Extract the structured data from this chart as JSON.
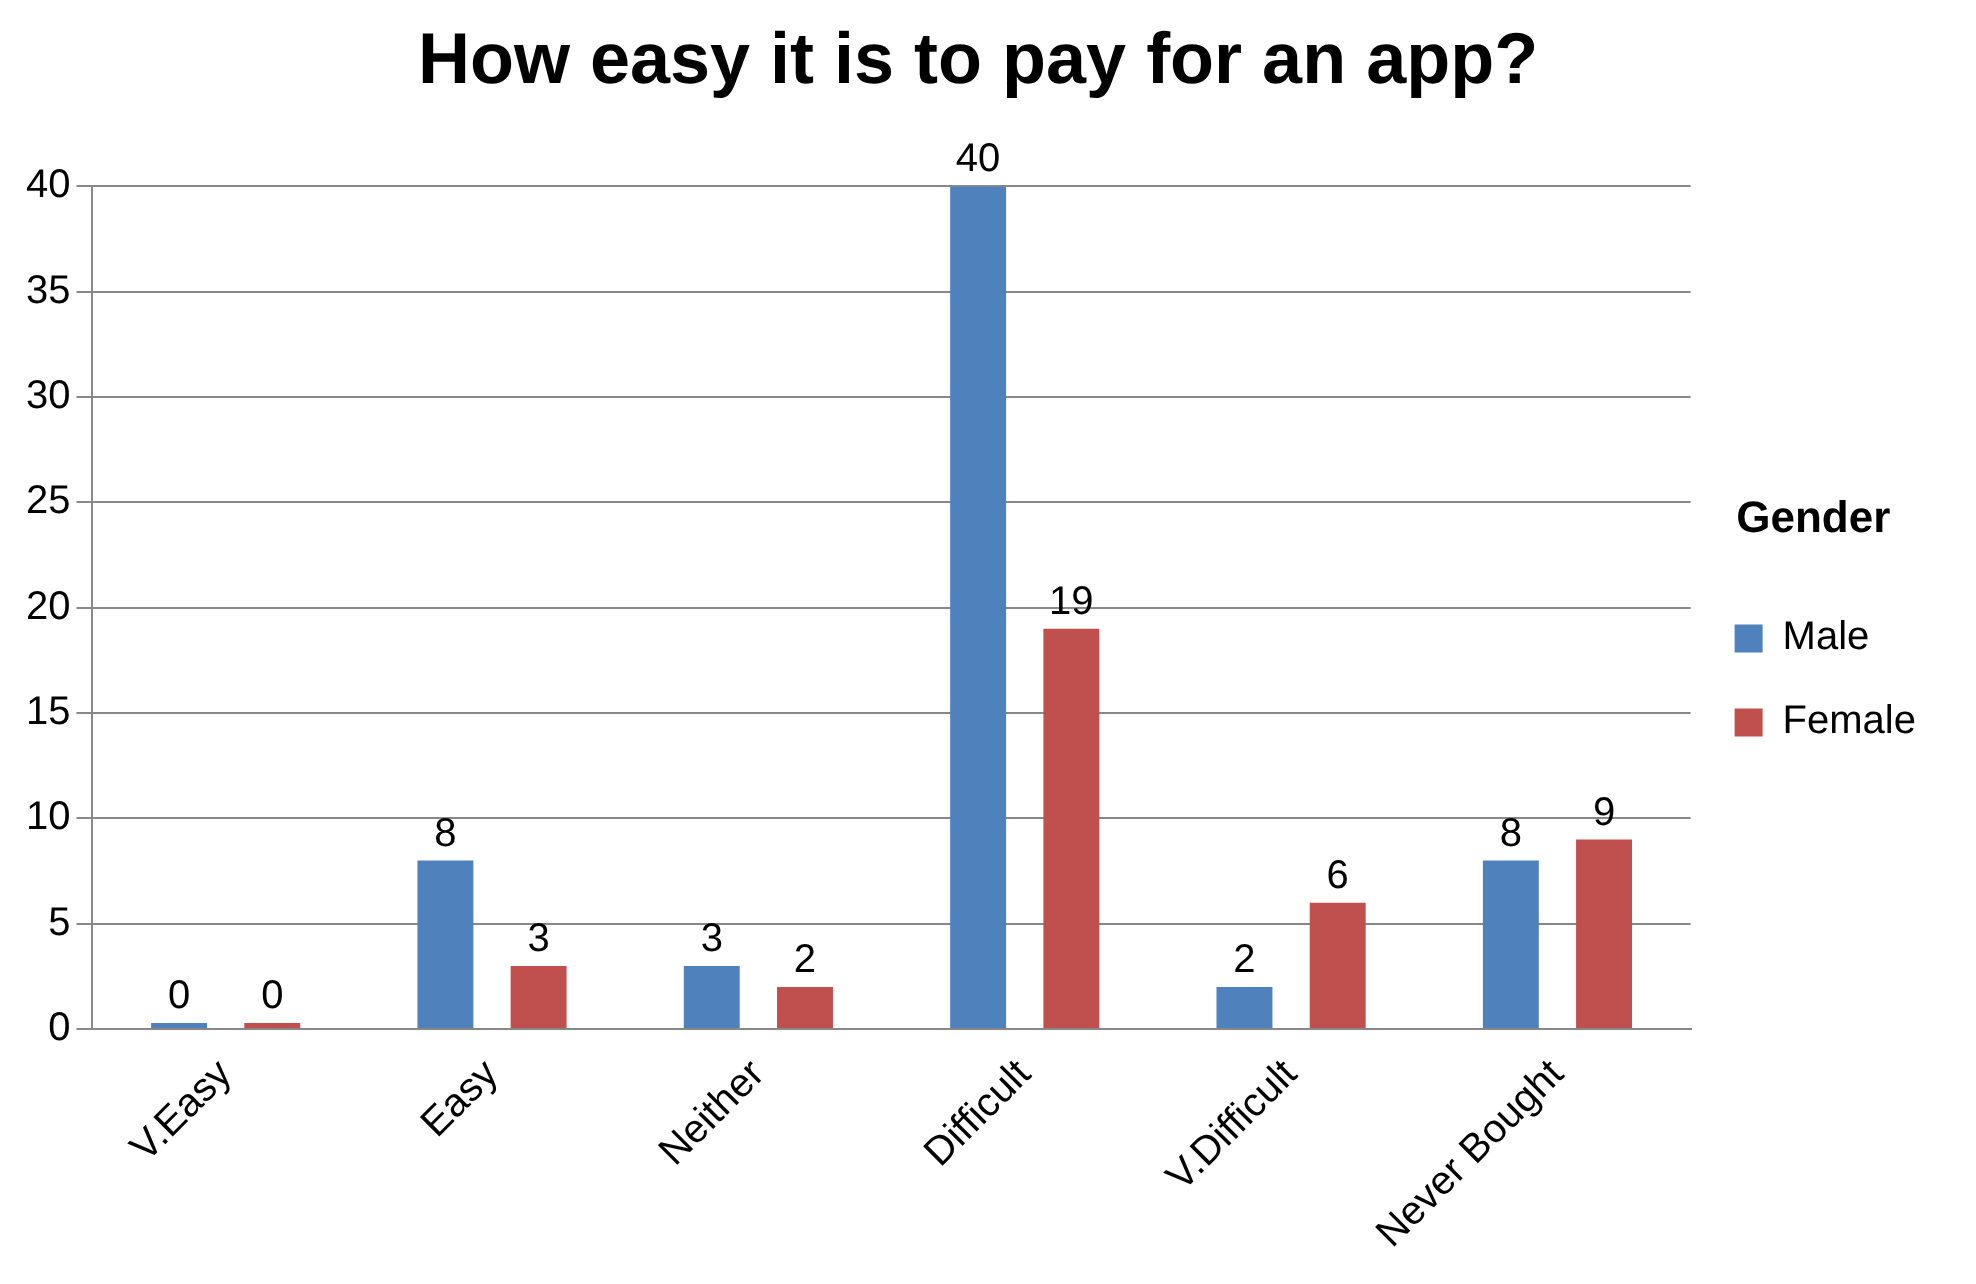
{
  "chart_data": {
    "type": "bar",
    "title": "How easy it is to pay for an app?",
    "legend_title": "Gender",
    "categories": [
      "V.Easy",
      "Easy",
      "Neither",
      "Difficult",
      "V.Difficult",
      "Never Bought"
    ],
    "series": [
      {
        "name": "Male",
        "color": "#4f81bd",
        "values": [
          0,
          8,
          3,
          40,
          2,
          8
        ]
      },
      {
        "name": "Female",
        "color": "#c0504d",
        "values": [
          0,
          3,
          2,
          19,
          6,
          9
        ]
      }
    ],
    "ylim": [
      0,
      40
    ],
    "yticks": [
      0,
      5,
      10,
      15,
      20,
      25,
      30,
      35,
      40
    ],
    "grid": "y",
    "legend": "right",
    "data_labels": true
  }
}
